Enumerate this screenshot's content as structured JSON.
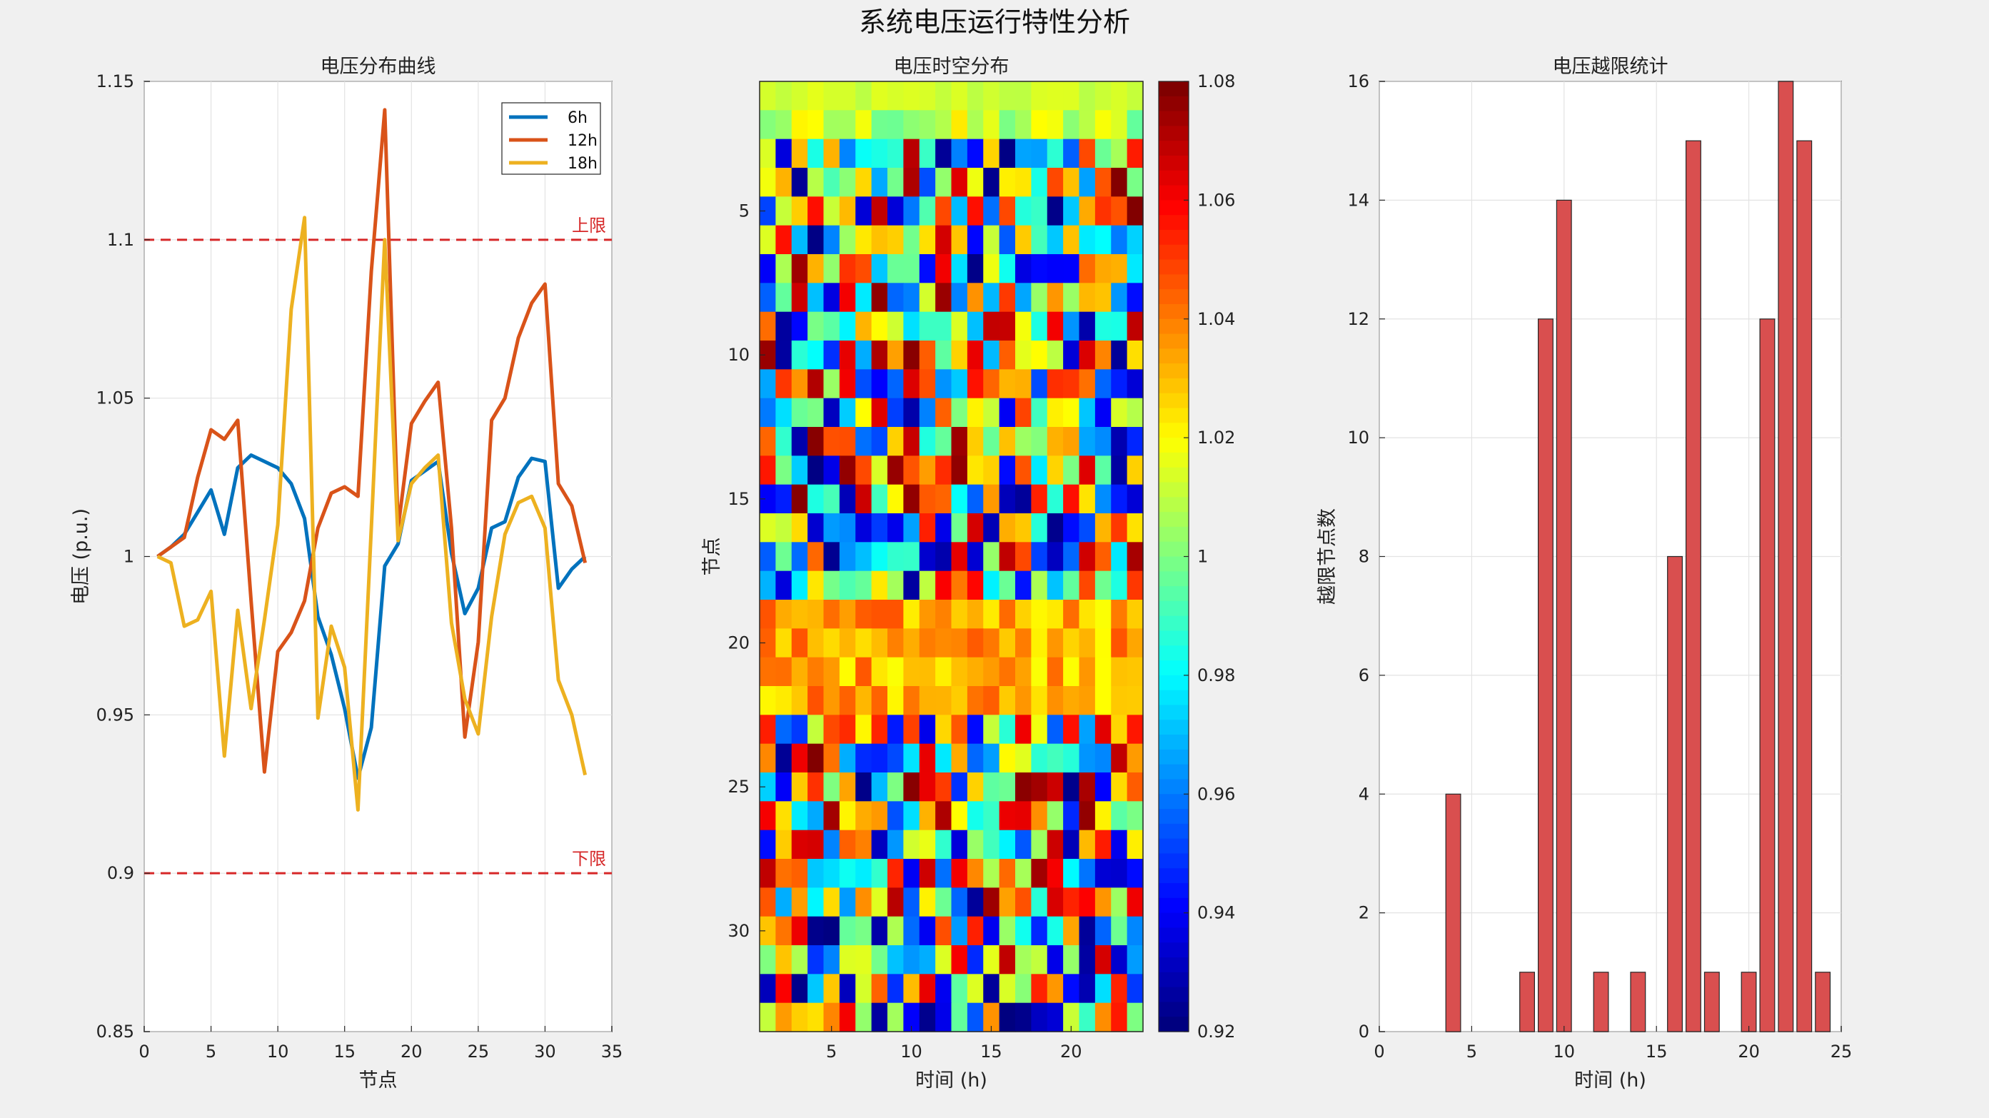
{
  "figure_title": "系统电压运行特性分析",
  "chart_data": [
    {
      "type": "line",
      "title": "电压分布曲线",
      "xlabel": "节点",
      "ylabel": "电压 (p.u.)",
      "xlim": [
        0,
        35
      ],
      "ylim": [
        0.85,
        1.15
      ],
      "xticks": [
        "0",
        "5",
        "10",
        "15",
        "20",
        "25",
        "30",
        "35"
      ],
      "yticks": [
        "0.85",
        "0.9",
        "0.95",
        "1",
        "1.05",
        "1.1",
        "1.15"
      ],
      "grid": true,
      "legend_position": "top-right",
      "x": [
        1,
        2,
        3,
        4,
        5,
        6,
        7,
        8,
        9,
        10,
        11,
        12,
        13,
        14,
        15,
        16,
        17,
        18,
        19,
        20,
        21,
        22,
        23,
        24,
        25,
        26,
        27,
        28,
        29,
        30,
        31,
        32,
        33
      ],
      "series": [
        {
          "name": "6h",
          "color": "#0072bd",
          "values": [
            1.0,
            1.003,
            1.007,
            1.014,
            1.021,
            1.007,
            1.028,
            1.032,
            1.03,
            1.028,
            1.023,
            1.012,
            0.981,
            0.969,
            0.952,
            0.93,
            0.946,
            0.997,
            1.004,
            1.024,
            1.027,
            1.03,
            1.001,
            0.982,
            0.99,
            1.009,
            1.011,
            1.025,
            1.031,
            1.03,
            0.99,
            0.996,
            1.0
          ]
        },
        {
          "name": "12h",
          "color": "#d95319",
          "values": [
            1.0,
            1.003,
            1.006,
            1.025,
            1.04,
            1.037,
            1.043,
            0.986,
            0.932,
            0.97,
            0.976,
            0.986,
            1.009,
            1.02,
            1.022,
            1.019,
            1.09,
            1.141,
            1.009,
            1.042,
            1.049,
            1.055,
            1.009,
            0.943,
            0.973,
            1.043,
            1.05,
            1.069,
            1.08,
            1.086,
            1.023,
            1.016,
            0.998
          ]
        },
        {
          "name": "18h",
          "color": "#edb120",
          "values": [
            1.0,
            0.998,
            0.978,
            0.98,
            0.989,
            0.937,
            0.983,
            0.952,
            0.98,
            1.01,
            1.078,
            1.107,
            0.949,
            0.978,
            0.965,
            0.92,
            1.009,
            1.1,
            1.005,
            1.023,
            1.028,
            1.032,
            0.979,
            0.955,
            0.944,
            0.981,
            1.007,
            1.017,
            1.019,
            1.009,
            0.961,
            0.95,
            0.931
          ]
        }
      ],
      "reference_lines": [
        {
          "label": "上限",
          "value": 1.1,
          "color": "#d62728"
        },
        {
          "label": "下限",
          "value": 0.9,
          "color": "#d62728"
        }
      ]
    },
    {
      "type": "heatmap",
      "title": "电压时空分布",
      "xlabel": "时间 (h)",
      "ylabel": "节点",
      "colormap": "jet",
      "clim": [
        0.92,
        1.08
      ],
      "x_range": [
        1,
        24
      ],
      "y_range": [
        1,
        33
      ],
      "xticks": [
        "5",
        "10",
        "15",
        "20"
      ],
      "yticks": [
        "5",
        "10",
        "15",
        "20",
        "25",
        "30"
      ],
      "colorbar_ticks": [
        "0.92",
        "0.94",
        "0.96",
        "0.98",
        "1",
        "1.02",
        "1.04",
        "1.06",
        "1.08"
      ],
      "rows_note_hidden": "",
      "values": []
    },
    {
      "type": "bar",
      "title": "电压越限统计",
      "xlabel": "时间 (h)",
      "ylabel": "越限节点数",
      "xlim": [
        0,
        25
      ],
      "ylim": [
        0,
        16
      ],
      "xticks": [
        "0",
        "5",
        "10",
        "15",
        "20",
        "25"
      ],
      "yticks": [
        "0",
        "2",
        "4",
        "6",
        "8",
        "10",
        "12",
        "14",
        "16"
      ],
      "grid": true,
      "bar_color": "#d94f4f",
      "categories": [
        1,
        2,
        3,
        4,
        5,
        6,
        7,
        8,
        9,
        10,
        11,
        12,
        13,
        14,
        15,
        16,
        17,
        18,
        19,
        20,
        21,
        22,
        23,
        24
      ],
      "values": [
        0,
        0,
        0,
        4,
        0,
        0,
        0,
        1,
        12,
        14,
        0,
        1,
        0,
        1,
        0,
        8,
        15,
        1,
        0,
        1,
        12,
        16,
        15,
        1
      ]
    }
  ]
}
